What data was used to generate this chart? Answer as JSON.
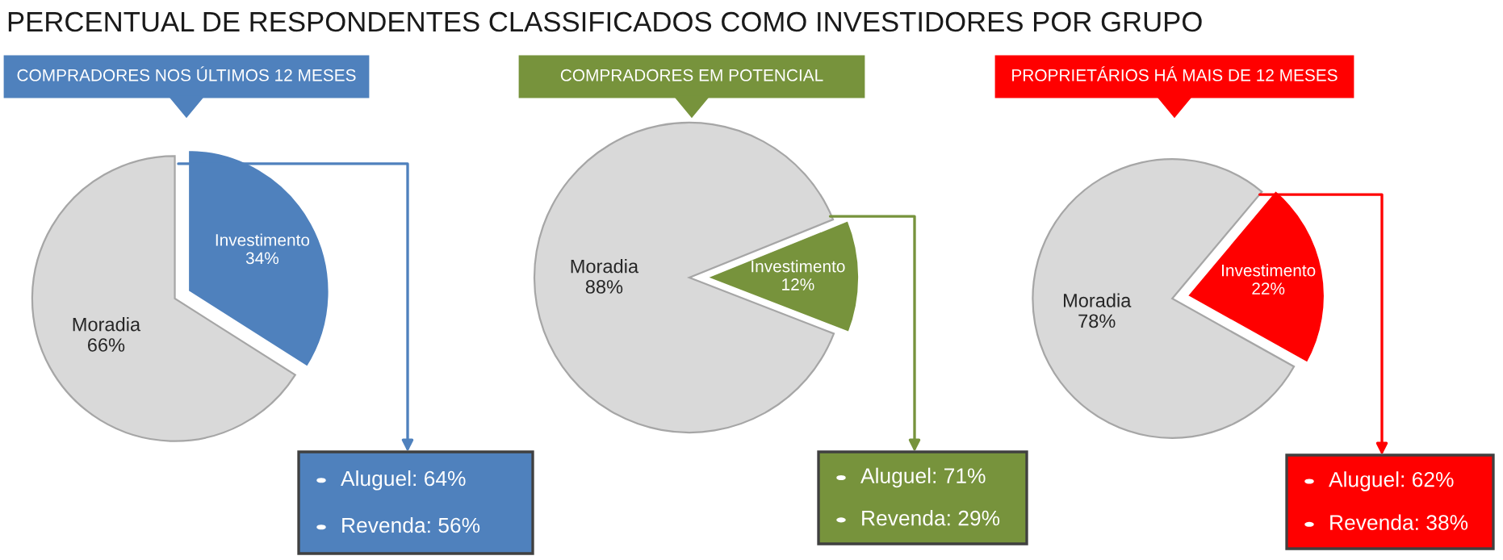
{
  "chart_data": [
    {
      "type": "pie",
      "title": "COMPRADORES NOS ÚLTIMOS 12 MESES",
      "categories": [
        "Moradia",
        "Investimento"
      ],
      "values": [
        66,
        34
      ],
      "value_labels": [
        "66%",
        "34%"
      ],
      "colors": [
        "#d9d9d9",
        "#4f81bd"
      ],
      "annotations": [
        "PERCENTUAL DE RESPONDENTES CLASSIFICADOS COMO INVESTIDORES POR GRUPO",
        "Aluguel: 64%",
        "Revenda: 56%"
      ]
    },
    {
      "type": "pie",
      "title": "COMPRADORES EM POTENCIAL",
      "categories": [
        "Moradia",
        "Investimento"
      ],
      "values": [
        88,
        12
      ],
      "value_labels": [
        "88%",
        "12%"
      ],
      "colors": [
        "#d9d9d9",
        "#77933c"
      ],
      "annotations": [
        "Aluguel: 71%",
        "Revenda: 29%"
      ]
    },
    {
      "type": "pie",
      "title": "PROPRIETÁRIOS HÁ MAIS DE 12 MESES",
      "categories": [
        "Moradia",
        "Investimento"
      ],
      "values": [
        78,
        22
      ],
      "value_labels": [
        "78%",
        "22%"
      ],
      "colors": [
        "#d9d9d9",
        "#ff0000"
      ],
      "annotations": [
        "Aluguel: 62%",
        "Revenda: 38%"
      ]
    }
  ]
}
